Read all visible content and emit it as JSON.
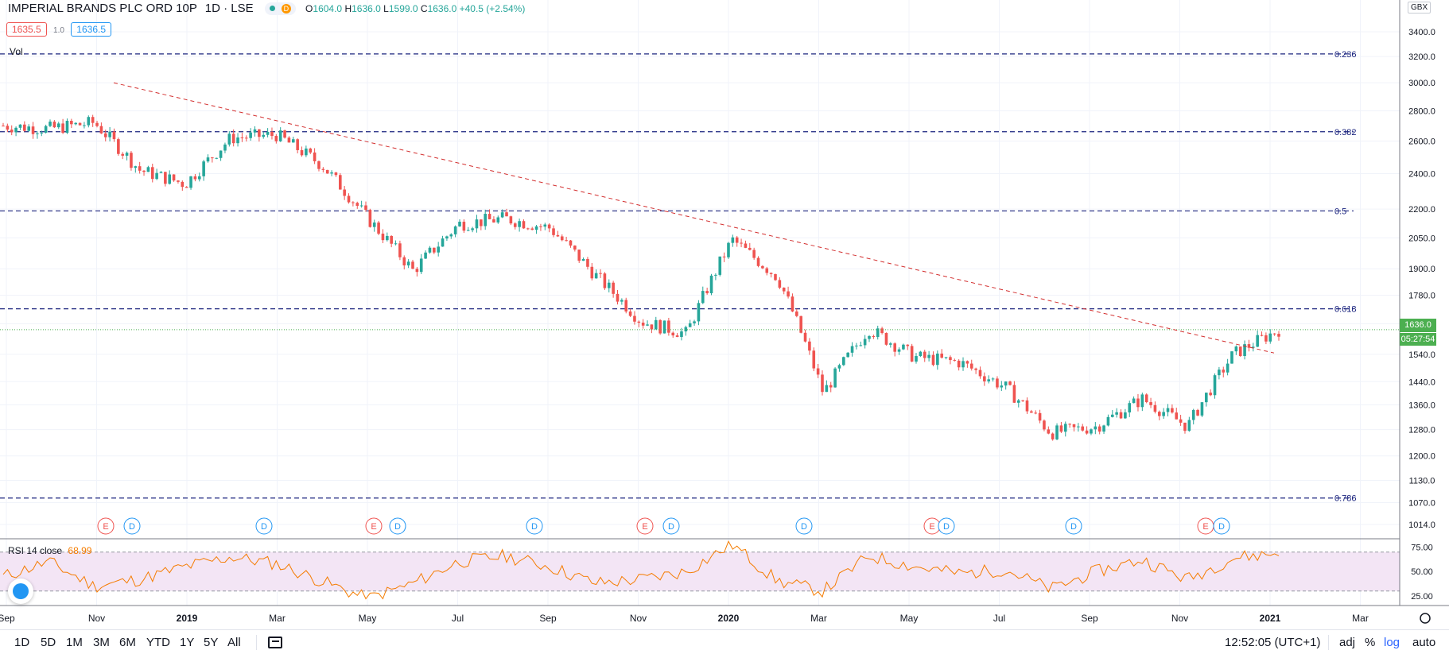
{
  "legend": {
    "title": "IMPERIAL BRANDS PLC ORD 10P",
    "interval": "1D",
    "exchange": "LSE",
    "badge": "D",
    "open_label": "O",
    "open": "1604.0",
    "high_label": "H",
    "high": "1636.0",
    "low_label": "L",
    "low": "1599.0",
    "close_label": "C",
    "close": "1636.0",
    "change": "+40.5 (+2.54%)",
    "bid": "1635.5",
    "spread": "1.0",
    "ask": "1636.5",
    "vol_label": "Vol"
  },
  "currency": "GBX",
  "price_label": "1636.0",
  "countdown": "05:27:54",
  "rsi": {
    "label": "RSI 14 close",
    "value": "68.99"
  },
  "bottom_bar": {
    "timeframes": [
      "1D",
      "5D",
      "1M",
      "3M",
      "6M",
      "YTD",
      "1Y",
      "5Y",
      "All"
    ],
    "clock": "12:52:05 (UTC+1)",
    "adj": "adj",
    "pct": "%",
    "log": "log",
    "auto": "auto"
  },
  "colors": {
    "up": "#26a69a",
    "down": "#ef5350",
    "fib": "#1a237e",
    "trend": "#d32f2f",
    "rsi_line": "#f57c00",
    "rsi_band": "#f3e5f5",
    "accent": "#2962ff",
    "last_price": "#4caf50"
  },
  "chart_data": [
    {
      "type": "candlestick",
      "scale": "log",
      "series": [
        {
          "name": "IMPERIAL BRANDS PLC ORD 10P",
          "x": [
            "2018-09",
            "2018-10",
            "2018-11",
            "2018-12",
            "2019-01",
            "2019-02",
            "2019-03",
            "2019-04",
            "2019-05",
            "2019-06",
            "2019-07",
            "2019-08",
            "2019-09",
            "2019-10",
            "2019-11",
            "2019-12",
            "2020-01",
            "2020-02",
            "2020-03",
            "2020-04",
            "2020-05",
            "2020-06",
            "2020-07",
            "2020-08",
            "2020-09",
            "2020-10",
            "2020-11",
            "2020-12",
            "2021-01"
          ],
          "values": [
            2700,
            2680,
            2720,
            2420,
            2340,
            2620,
            2640,
            2450,
            2150,
            1890,
            2120,
            2150,
            2100,
            1870,
            1670,
            1620,
            2040,
            1860,
            1400,
            1640,
            1530,
            1510,
            1420,
            1270,
            1290,
            1380,
            1290,
            1540,
            1636
          ]
        }
      ],
      "last_price": 1636.0,
      "ylim": [
        1014,
        3400
      ],
      "yticks": [
        "3400.0",
        "3200.0",
        "3000.0",
        "2800.0",
        "2600.0",
        "2400.0",
        "2200.0",
        "2050.0",
        "1900.0",
        "1780.0",
        "1660.0",
        "1540.0",
        "1440.0",
        "1360.0",
        "1280.0",
        "1200.0",
        "1130.0",
        "1070.0",
        "1014.0"
      ],
      "xticks": [
        "Sep",
        "Nov",
        "2019",
        "Mar",
        "May",
        "Jul",
        "Sep",
        "Nov",
        "2020",
        "Mar",
        "May",
        "Jul",
        "Sep",
        "Nov",
        "2021",
        "Mar"
      ],
      "fibonacci": [
        {
          "level": "0.236",
          "price": 3220
        },
        {
          "level": "0.382",
          "price": 2660
        },
        {
          "level": "0.5",
          "price": 2190
        },
        {
          "level": "0.618",
          "price": 1722
        },
        {
          "level": "0.786",
          "price": 1082
        }
      ],
      "trendline": {
        "from": [
          "2018-11",
          3000
        ],
        "to": [
          "2021-01",
          1545
        ]
      },
      "events": [
        "E",
        "D",
        "D",
        "E",
        "D",
        "D",
        "E",
        "D",
        "D",
        "E",
        "D",
        "D",
        "E",
        "D"
      ]
    },
    {
      "type": "line",
      "title": "RSI 14 close",
      "ylim": [
        20,
        82
      ],
      "yticks": [
        "75.00",
        "50.00",
        "25.00"
      ],
      "bands": [
        30,
        70
      ],
      "series": [
        {
          "name": "RSI 14 close",
          "x": [
            "2018-09",
            "2018-10",
            "2018-11",
            "2018-12",
            "2019-01",
            "2019-02",
            "2019-03",
            "2019-04",
            "2019-05",
            "2019-06",
            "2019-07",
            "2019-08",
            "2019-09",
            "2019-10",
            "2019-11",
            "2019-12",
            "2020-01",
            "2020-02",
            "2020-03",
            "2020-04",
            "2020-05",
            "2020-06",
            "2020-07",
            "2020-08",
            "2020-09",
            "2020-10",
            "2020-11",
            "2020-12",
            "2021-01"
          ],
          "values": [
            45,
            60,
            35,
            42,
            55,
            65,
            58,
            40,
            22,
            38,
            60,
            66,
            55,
            38,
            42,
            50,
            78,
            40,
            30,
            66,
            55,
            48,
            52,
            32,
            50,
            62,
            42,
            64,
            68.99
          ]
        }
      ]
    }
  ]
}
